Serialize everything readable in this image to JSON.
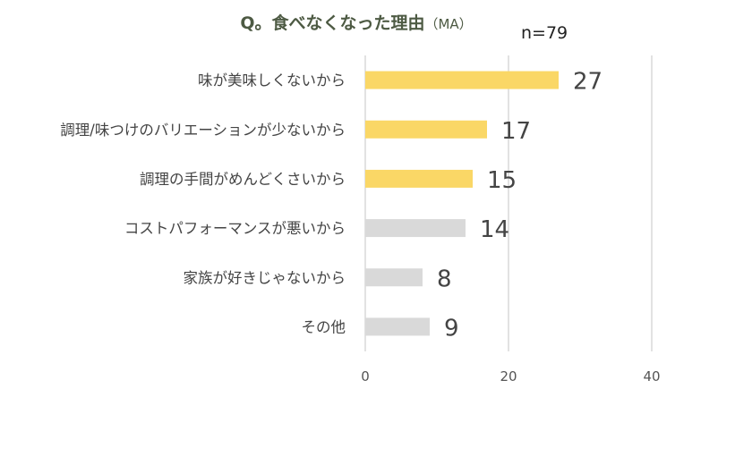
{
  "chart_data": {
    "type": "bar",
    "orientation": "horizontal",
    "title": "Q。食べなくなった理由",
    "title_suffix": "（MA）",
    "sample_size": "n=79",
    "categories": [
      "味が美味しくないから",
      "調理/味つけのバリエーションが少ないから",
      "調理の手間がめんどくさいから",
      "コストパフォーマンスが悪いから",
      "家族が好きじゃないから",
      "その他"
    ],
    "values": [
      27,
      17,
      15,
      14,
      8,
      9
    ],
    "bar_colors": [
      "#fad766",
      "#fad766",
      "#fad766",
      "#d9d9d9",
      "#d9d9d9",
      "#d9d9d9"
    ],
    "xlim": [
      0,
      40
    ],
    "xticks": [
      "0",
      "20",
      "40"
    ],
    "xlabel": "",
    "ylabel": "",
    "grid": "vertical",
    "legend": "none"
  }
}
